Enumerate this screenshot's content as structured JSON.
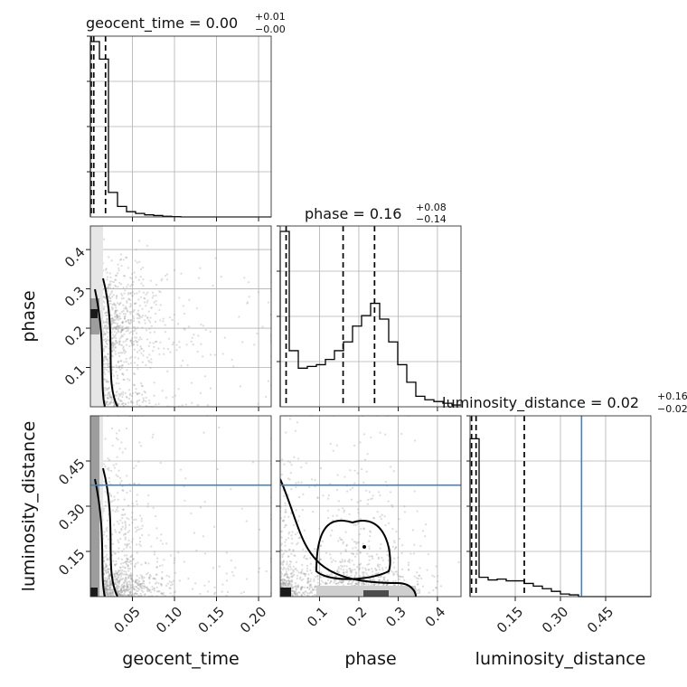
{
  "chart_data": {
    "type": "corner",
    "parameters": [
      "geocent_time",
      "phase",
      "luminosity_distance"
    ],
    "titles": [
      {
        "param": "geocent_time",
        "median": "0.00",
        "plus": "+0.01",
        "minus": "−0.00"
      },
      {
        "param": "phase",
        "median": "0.16",
        "plus": "+0.08",
        "minus": "−0.14"
      },
      {
        "param": "luminosity_distance",
        "median": "0.02",
        "plus": "+0.16",
        "minus": "−0.02"
      }
    ],
    "ranges": {
      "geocent_time": [
        0.0,
        0.215
      ],
      "phase": [
        0.0,
        0.46
      ],
      "luminosity_distance": [
        0.0,
        0.6
      ]
    },
    "ticks": {
      "geocent_time": [
        0.05,
        0.1,
        0.15,
        0.2
      ],
      "phase": [
        0.1,
        0.2,
        0.3,
        0.4
      ],
      "luminosity_distance": [
        0.15,
        0.3,
        0.45
      ]
    },
    "tick_labels": {
      "geocent_time": [
        "0.05",
        "0.10",
        "0.15",
        "0.20"
      ],
      "phase": [
        "0.1",
        "0.2",
        "0.3",
        "0.4"
      ],
      "luminosity_distance": [
        "0.15",
        "0.30",
        "0.45"
      ]
    },
    "quantiles": {
      "geocent_time": [
        0.001,
        0.004,
        0.018
      ],
      "phase": [
        0.015,
        0.16,
        0.24
      ],
      "luminosity_distance": [
        0.005,
        0.02,
        0.18
      ]
    },
    "truths": {
      "luminosity_distance": 0.37
    },
    "histograms": {
      "geocent_time": [
        1.0,
        0.9,
        0.14,
        0.06,
        0.03,
        0.02,
        0.012,
        0.008,
        0.004,
        0.002,
        0.0,
        0.0,
        0.0,
        0.0,
        0.0,
        0.0,
        0.0,
        0.0,
        0.0,
        0.0
      ],
      "phase": [
        1.0,
        0.32,
        0.22,
        0.23,
        0.24,
        0.27,
        0.32,
        0.37,
        0.46,
        0.52,
        0.59,
        0.5,
        0.37,
        0.24,
        0.14,
        0.06,
        0.04,
        0.03,
        0.02,
        0.01
      ],
      "luminosity_distance": [
        0.9,
        0.11,
        0.095,
        0.1,
        0.09,
        0.09,
        0.075,
        0.06,
        0.045,
        0.03,
        0.015,
        0.01,
        0.0,
        0.0,
        0.0,
        0.0,
        0.0,
        0.0,
        0.0,
        0.0
      ]
    },
    "scatter_points_per_panel": 1200,
    "grid": true,
    "legend": "none"
  }
}
